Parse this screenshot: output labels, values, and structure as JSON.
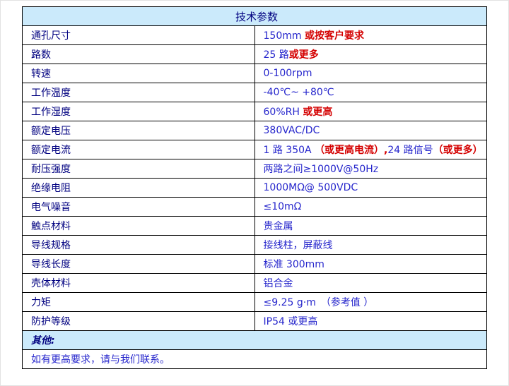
{
  "colors": {
    "section_bg": "#cbeafb",
    "label_text": "#000080",
    "value_text": "#2626cc",
    "emphasis_text": "#d40000",
    "grid_border": "#000000"
  },
  "table": {
    "title": "技术参数",
    "rows": [
      {
        "label": "通孔尺寸",
        "value": [
          {
            "t": "150mm ",
            "c": "blue"
          },
          {
            "t": "或按客户要求",
            "c": "red"
          }
        ]
      },
      {
        "label": "路数",
        "value": [
          {
            "t": "25 路",
            "c": "blue"
          },
          {
            "t": "或更多",
            "c": "red"
          }
        ]
      },
      {
        "label": "转速",
        "value": [
          {
            "t": "0-100rpm",
            "c": "blue"
          }
        ]
      },
      {
        "label": "工作温度",
        "value": [
          {
            "t": "-40℃~ +80℃",
            "c": "blue"
          }
        ]
      },
      {
        "label": "工作湿度",
        "value": [
          {
            "t": "60%RH ",
            "c": "blue"
          },
          {
            "t": "或更高",
            "c": "red"
          }
        ]
      },
      {
        "label": "额定电压",
        "value": [
          {
            "t": "380VAC/DC",
            "c": "blue"
          }
        ]
      },
      {
        "label": "额定电流",
        "value": [
          {
            "t": "1 路 350A ",
            "c": "blue"
          },
          {
            "t": "（或更高电流）,",
            "c": "red"
          },
          {
            "t": "24 路信号",
            "c": "blue"
          },
          {
            "t": "（或更多）",
            "c": "red"
          }
        ]
      },
      {
        "label": "耐压强度",
        "value": [
          {
            "t": "两路之间≥1000V@50Hz",
            "c": "blue"
          }
        ]
      },
      {
        "label": "绝缘电阻",
        "value": [
          {
            "t": "1000MΩ@ 500VDC",
            "c": "blue"
          }
        ]
      },
      {
        "label": "电气噪音",
        "value": [
          {
            "t": "≤10mΩ",
            "c": "blue"
          }
        ]
      },
      {
        "label": "触点材料",
        "value": [
          {
            "t": "贵金属",
            "c": "blue"
          }
        ]
      },
      {
        "label": "导线规格",
        "value": [
          {
            "t": "接线柱，屏蔽线",
            "c": "blue"
          }
        ]
      },
      {
        "label": "导线长度",
        "value": [
          {
            "t": "标准 300mm",
            "c": "blue"
          }
        ]
      },
      {
        "label": "壳体材料",
        "value": [
          {
            "t": "铝合金",
            "c": "blue"
          }
        ]
      },
      {
        "label": "力矩",
        "value": [
          {
            "t": "≤9.25 g·m　（参考值 ）",
            "c": "blue"
          }
        ]
      },
      {
        "label": "防护等级",
        "value": [
          {
            "t": "IP54 或更高",
            "c": "blue"
          }
        ]
      }
    ],
    "other_label": "其他:",
    "footer_note": "如有更高要求，请与我们联系。"
  }
}
